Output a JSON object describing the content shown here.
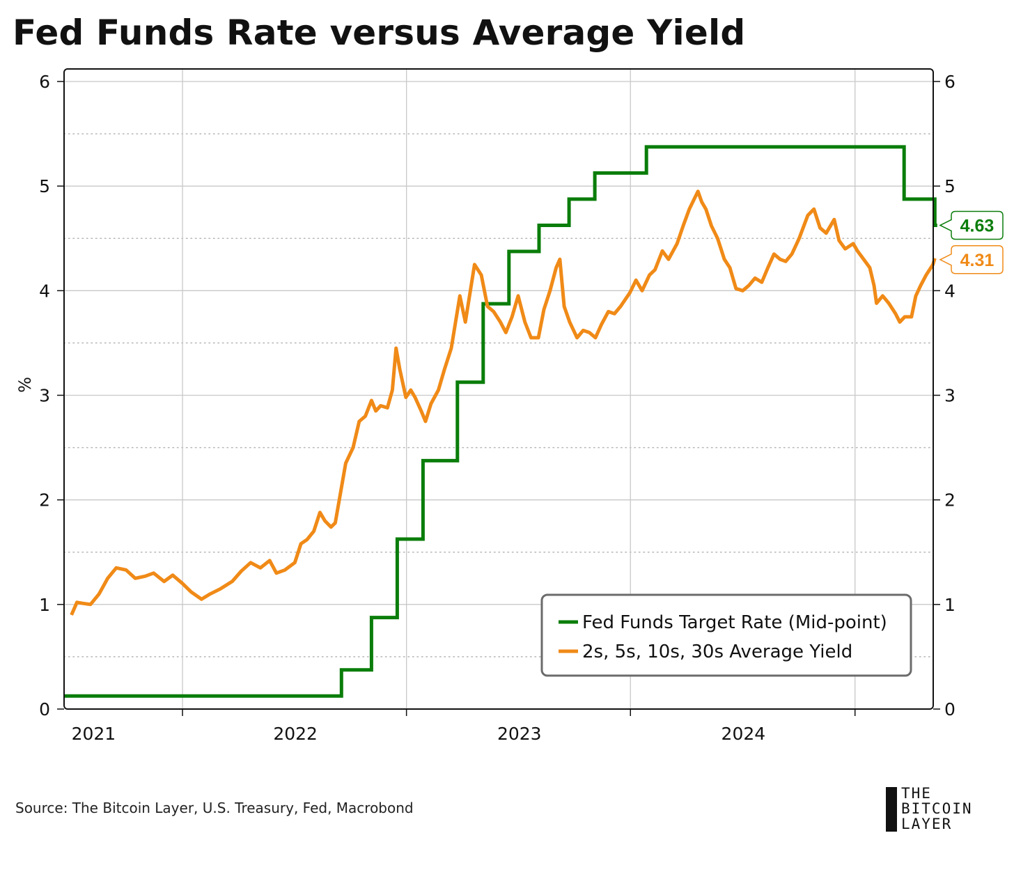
{
  "title": "Fed Funds Rate versus Average Yield",
  "source": "Source: The Bitcoin Layer, U.S. Treasury, Fed, Macrobond",
  "logo": {
    "line1": "THE",
    "line2": "BITCOIN",
    "line3": "LAYER"
  },
  "colors": {
    "fed": "#0a7d0a",
    "yield": "#f08a17",
    "grid": "#c8c8c8",
    "frame": "#111111"
  },
  "chart_data": {
    "type": "line",
    "ylabel": "%",
    "ylim": [
      0,
      6
    ],
    "yticks": [
      "0",
      "1",
      "2",
      "3",
      "4",
      "5",
      "6"
    ],
    "xlim": [
      "2020-12-20",
      "2024-10-16"
    ],
    "xticks": [
      {
        "label": "2021",
        "date": "2021-01-01"
      },
      {
        "label": "2022",
        "date": "2022-01-01"
      },
      {
        "label": "2023",
        "date": "2023-01-01"
      },
      {
        "label": "2024",
        "date": "2024-01-01"
      }
    ],
    "grid": true,
    "legend": "bottom-right",
    "series": [
      {
        "name": "Fed Funds Target Rate (Mid-point)",
        "color": "#0a7d0a",
        "step": true,
        "last_value": "4.63",
        "points": [
          [
            "2020-12-20",
            0.125
          ],
          [
            "2022-03-17",
            0.375
          ],
          [
            "2022-05-05",
            0.875
          ],
          [
            "2022-06-16",
            1.625
          ],
          [
            "2022-07-28",
            2.375
          ],
          [
            "2022-09-22",
            3.125
          ],
          [
            "2022-11-03",
            3.875
          ],
          [
            "2022-12-15",
            4.375
          ],
          [
            "2023-02-02",
            4.625
          ],
          [
            "2023-03-23",
            4.875
          ],
          [
            "2023-05-04",
            5.125
          ],
          [
            "2023-07-27",
            5.375
          ],
          [
            "2024-09-19",
            4.875
          ],
          [
            "2024-11-08",
            4.625
          ],
          [
            "2024-11-12",
            4.625
          ]
        ]
      },
      {
        "name": "2s, 5s, 10s, 30s Average Yield",
        "color": "#f08a17",
        "step": false,
        "last_value": "4.31",
        "points": [
          [
            "2021-01-01",
            0.9
          ],
          [
            "2021-01-10",
            1.02
          ],
          [
            "2021-01-20",
            1.01
          ],
          [
            "2021-02-01",
            1.0
          ],
          [
            "2021-02-15",
            1.1
          ],
          [
            "2021-03-01",
            1.25
          ],
          [
            "2021-03-15",
            1.35
          ],
          [
            "2021-03-31",
            1.33
          ],
          [
            "2021-04-15",
            1.25
          ],
          [
            "2021-05-01",
            1.27
          ],
          [
            "2021-05-15",
            1.3
          ],
          [
            "2021-06-01",
            1.22
          ],
          [
            "2021-06-15",
            1.28
          ],
          [
            "2021-07-01",
            1.2
          ],
          [
            "2021-07-15",
            1.12
          ],
          [
            "2021-08-01",
            1.05
          ],
          [
            "2021-08-15",
            1.1
          ],
          [
            "2021-09-01",
            1.15
          ],
          [
            "2021-09-20",
            1.22
          ],
          [
            "2021-10-05",
            1.32
          ],
          [
            "2021-10-20",
            1.4
          ],
          [
            "2021-11-05",
            1.35
          ],
          [
            "2021-11-20",
            1.42
          ],
          [
            "2021-12-01",
            1.3
          ],
          [
            "2021-12-15",
            1.33
          ],
          [
            "2021-12-31",
            1.4
          ],
          [
            "2022-01-10",
            1.58
          ],
          [
            "2022-01-20",
            1.62
          ],
          [
            "2022-01-31",
            1.7
          ],
          [
            "2022-02-10",
            1.88
          ],
          [
            "2022-02-18",
            1.8
          ],
          [
            "2022-02-28",
            1.74
          ],
          [
            "2022-03-07",
            1.78
          ],
          [
            "2022-03-15",
            2.05
          ],
          [
            "2022-03-24",
            2.35
          ],
          [
            "2022-04-05",
            2.5
          ],
          [
            "2022-04-15",
            2.75
          ],
          [
            "2022-04-25",
            2.8
          ],
          [
            "2022-05-05",
            2.95
          ],
          [
            "2022-05-12",
            2.85
          ],
          [
            "2022-05-20",
            2.9
          ],
          [
            "2022-05-31",
            2.88
          ],
          [
            "2022-06-08",
            3.05
          ],
          [
            "2022-06-14",
            3.45
          ],
          [
            "2022-06-20",
            3.25
          ],
          [
            "2022-06-30",
            2.98
          ],
          [
            "2022-07-08",
            3.05
          ],
          [
            "2022-07-15",
            2.98
          ],
          [
            "2022-07-25",
            2.85
          ],
          [
            "2022-08-01",
            2.75
          ],
          [
            "2022-08-10",
            2.92
          ],
          [
            "2022-08-22",
            3.05
          ],
          [
            "2022-09-01",
            3.25
          ],
          [
            "2022-09-12",
            3.45
          ],
          [
            "2022-09-26",
            3.95
          ],
          [
            "2022-10-05",
            3.7
          ],
          [
            "2022-10-20",
            4.25
          ],
          [
            "2022-10-31",
            4.15
          ],
          [
            "2022-11-10",
            3.85
          ],
          [
            "2022-11-20",
            3.8
          ],
          [
            "2022-12-01",
            3.7
          ],
          [
            "2022-12-10",
            3.6
          ],
          [
            "2022-12-20",
            3.75
          ],
          [
            "2022-12-30",
            3.95
          ],
          [
            "2023-01-10",
            3.7
          ],
          [
            "2023-01-20",
            3.55
          ],
          [
            "2023-02-01",
            3.55
          ],
          [
            "2023-02-10",
            3.82
          ],
          [
            "2023-02-20",
            4.0
          ],
          [
            "2023-03-02",
            4.22
          ],
          [
            "2023-03-08",
            4.3
          ],
          [
            "2023-03-15",
            3.85
          ],
          [
            "2023-03-24",
            3.7
          ],
          [
            "2023-04-05",
            3.55
          ],
          [
            "2023-04-15",
            3.62
          ],
          [
            "2023-04-25",
            3.6
          ],
          [
            "2023-05-05",
            3.55
          ],
          [
            "2023-05-15",
            3.68
          ],
          [
            "2023-05-26",
            3.8
          ],
          [
            "2023-06-05",
            3.78
          ],
          [
            "2023-06-15",
            3.85
          ],
          [
            "2023-06-30",
            3.98
          ],
          [
            "2023-07-10",
            4.1
          ],
          [
            "2023-07-20",
            4.0
          ],
          [
            "2023-08-01",
            4.15
          ],
          [
            "2023-08-10",
            4.2
          ],
          [
            "2023-08-22",
            4.38
          ],
          [
            "2023-09-01",
            4.3
          ],
          [
            "2023-09-15",
            4.45
          ],
          [
            "2023-09-25",
            4.62
          ],
          [
            "2023-10-05",
            4.78
          ],
          [
            "2023-10-19",
            4.95
          ],
          [
            "2023-10-25",
            4.85
          ],
          [
            "2023-11-01",
            4.78
          ],
          [
            "2023-11-10",
            4.62
          ],
          [
            "2023-11-20",
            4.5
          ],
          [
            "2023-12-01",
            4.3
          ],
          [
            "2023-12-10",
            4.22
          ],
          [
            "2023-12-20",
            4.02
          ],
          [
            "2023-12-31",
            4.0
          ],
          [
            "2024-01-10",
            4.05
          ],
          [
            "2024-01-20",
            4.12
          ],
          [
            "2024-01-31",
            4.08
          ],
          [
            "2024-02-10",
            4.22
          ],
          [
            "2024-02-20",
            4.35
          ],
          [
            "2024-03-01",
            4.3
          ],
          [
            "2024-03-10",
            4.28
          ],
          [
            "2024-03-20",
            4.35
          ],
          [
            "2024-04-01",
            4.5
          ],
          [
            "2024-04-15",
            4.72
          ],
          [
            "2024-04-25",
            4.78
          ],
          [
            "2024-05-05",
            4.6
          ],
          [
            "2024-05-15",
            4.55
          ],
          [
            "2024-05-28",
            4.68
          ],
          [
            "2024-06-05",
            4.48
          ],
          [
            "2024-06-15",
            4.4
          ],
          [
            "2024-06-28",
            4.45
          ],
          [
            "2024-07-05",
            4.38
          ],
          [
            "2024-07-15",
            4.3
          ],
          [
            "2024-07-25",
            4.22
          ],
          [
            "2024-08-01",
            4.05
          ],
          [
            "2024-08-05",
            3.88
          ],
          [
            "2024-08-15",
            3.95
          ],
          [
            "2024-08-25",
            3.88
          ],
          [
            "2024-09-05",
            3.78
          ],
          [
            "2024-09-12",
            3.7
          ],
          [
            "2024-09-20",
            3.75
          ],
          [
            "2024-10-01",
            3.75
          ],
          [
            "2024-10-08",
            3.95
          ],
          [
            "2024-10-16",
            4.05
          ],
          [
            "2024-10-25",
            4.15
          ],
          [
            "2024-11-05",
            4.25
          ],
          [
            "2024-11-08",
            4.31
          ]
        ]
      }
    ]
  }
}
